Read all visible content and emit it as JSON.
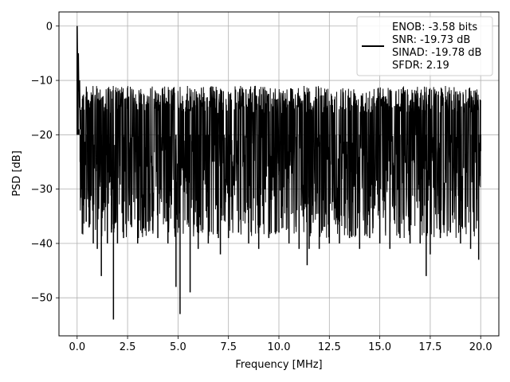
{
  "chart_data": {
    "type": "line",
    "xlabel": "Frequency [MHz]",
    "ylabel": "PSD [dB]",
    "xlim": [
      -0.9,
      20.9
    ],
    "ylim": [
      -57,
      2.6
    ],
    "x_ticks": [
      0.0,
      2.5,
      5.0,
      7.5,
      10.0,
      12.5,
      15.0,
      17.5,
      20.0
    ],
    "x_tick_labels": [
      "0.0",
      "2.5",
      "5.0",
      "7.5",
      "10.0",
      "12.5",
      "15.0",
      "17.5",
      "20.0"
    ],
    "y_ticks": [
      0,
      -10,
      -20,
      -30,
      -40,
      -50
    ],
    "y_tick_labels": [
      "0",
      "−10",
      "−20",
      "−30",
      "−40",
      "−50"
    ],
    "grid": true,
    "legend_position": "top-right",
    "series": [
      {
        "color": "#000000",
        "x": [
          0.0,
          0.02,
          0.05,
          0.1,
          0.15,
          0.2,
          0.3,
          0.45,
          0.6,
          0.8,
          1.0,
          1.2,
          1.5,
          1.7,
          1.8,
          2.0,
          2.3,
          2.7,
          3.0,
          3.5,
          4.0,
          4.5,
          4.9,
          5.1,
          5.6,
          6.0,
          6.5,
          7.0,
          7.1,
          7.5,
          8.0,
          8.5,
          9.0,
          9.5,
          10.0,
          10.5,
          11.0,
          11.4,
          11.5,
          12.0,
          12.5,
          13.0,
          13.5,
          14.0,
          14.5,
          15.0,
          15.5,
          16.0,
          16.5,
          17.0,
          17.3,
          17.5,
          18.0,
          18.5,
          19.0,
          19.5,
          19.9,
          20.0
        ],
        "y": [
          0.0,
          -8.0,
          -15.0,
          -19.0,
          -25.0,
          -30.0,
          -33.0,
          -36.0,
          -37.0,
          -40.0,
          -41.0,
          -46.0,
          -40.0,
          -38.0,
          -54.0,
          -40.0,
          -39.0,
          -37.0,
          -40.0,
          -36.0,
          -39.0,
          -40.0,
          -48.0,
          -53.0,
          -49.0,
          -41.0,
          -40.0,
          -39.0,
          -42.0,
          -39.0,
          -38.0,
          -40.0,
          -41.0,
          -39.0,
          -38.0,
          -40.0,
          -41.0,
          -44.0,
          -41.0,
          -41.0,
          -40.0,
          -40.0,
          -39.0,
          -41.0,
          -39.0,
          -40.0,
          -41.0,
          -39.0,
          -40.0,
          -40.0,
          -46.0,
          -42.0,
          -39.0,
          -38.0,
          -40.0,
          -41.0,
          -43.0,
          -23.0
        ]
      }
    ],
    "noise_band": {
      "x_start": 0.15,
      "x_end": 20.0,
      "y_top": -11.0,
      "y_center": -20.0,
      "y_floor": -34.0
    },
    "legend": {
      "lines": [
        "ENOB: -3.58 bits",
        "SNR: -19.73 dB",
        "SINAD: -19.78 dB",
        "SFDR: 2.19"
      ]
    }
  }
}
